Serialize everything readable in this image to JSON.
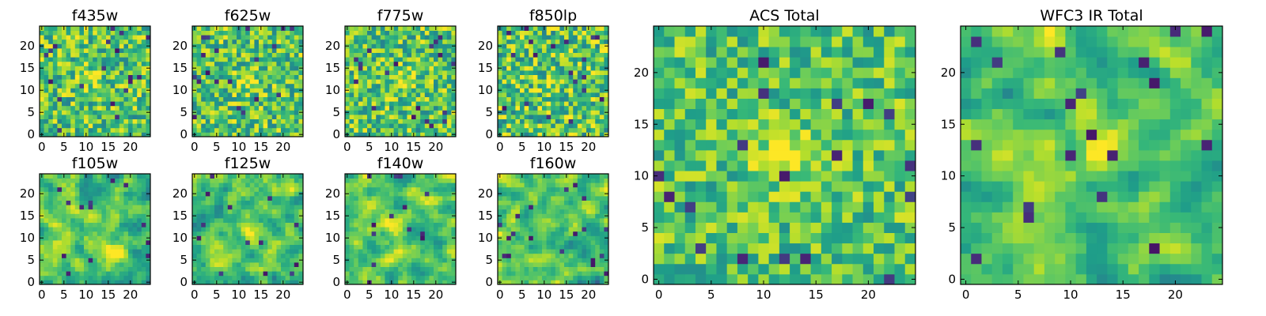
{
  "chart_data": [
    {
      "type": "heatmap",
      "title": "f435w",
      "xticks": [
        0,
        5,
        10,
        15,
        20
      ],
      "yticks": [
        0,
        5,
        10,
        15,
        20
      ],
      "xlim": [
        0,
        25
      ],
      "ylim": [
        0,
        25
      ],
      "size": 25,
      "colormap": "viridis",
      "seed": 11,
      "noise": 0.55,
      "smooth": 0,
      "peak": [
        11,
        13
      ],
      "peak_strength": 0.18,
      "dark_fraction": 0.03
    },
    {
      "type": "heatmap",
      "title": "f625w",
      "xticks": [
        0,
        5,
        10,
        15,
        20
      ],
      "yticks": [
        0,
        5,
        10,
        15,
        20
      ],
      "xlim": [
        0,
        25
      ],
      "ylim": [
        0,
        25
      ],
      "size": 25,
      "colormap": "viridis",
      "seed": 23,
      "noise": 0.55,
      "smooth": 0,
      "peak": [
        12,
        12
      ],
      "peak_strength": 0.25,
      "dark_fraction": 0.03
    },
    {
      "type": "heatmap",
      "title": "f775w",
      "xticks": [
        0,
        5,
        10,
        15,
        20
      ],
      "yticks": [
        0,
        5,
        10,
        15,
        20
      ],
      "xlim": [
        0,
        25
      ],
      "ylim": [
        0,
        25
      ],
      "size": 25,
      "colormap": "viridis",
      "seed": 37,
      "noise": 0.55,
      "smooth": 0,
      "peak": [
        13,
        12
      ],
      "peak_strength": 0.25,
      "dark_fraction": 0.03
    },
    {
      "type": "heatmap",
      "title": "f850lp",
      "xticks": [
        0,
        5,
        10,
        15,
        20
      ],
      "yticks": [
        0,
        5,
        10,
        15,
        20
      ],
      "xlim": [
        0,
        25
      ],
      "ylim": [
        0,
        25
      ],
      "size": 25,
      "colormap": "viridis",
      "seed": 41,
      "noise": 0.6,
      "smooth": 0,
      "peak": [
        12,
        12
      ],
      "peak_strength": 0.1,
      "dark_fraction": 0.03
    },
    {
      "type": "heatmap",
      "title": "f105w",
      "xticks": [
        0,
        5,
        10,
        15,
        20
      ],
      "yticks": [
        0,
        5,
        10,
        15,
        20
      ],
      "xlim": [
        0,
        25
      ],
      "ylim": [
        0,
        25
      ],
      "size": 25,
      "colormap": "viridis",
      "seed": 53,
      "noise": 0.5,
      "smooth": 1,
      "peak": [
        15,
        8
      ],
      "peak_strength": 0.3,
      "dark_fraction": 0.02
    },
    {
      "type": "heatmap",
      "title": "f125w",
      "xticks": [
        0,
        5,
        10,
        15,
        20
      ],
      "yticks": [
        0,
        5,
        10,
        15,
        20
      ],
      "xlim": [
        0,
        25
      ],
      "ylim": [
        0,
        25
      ],
      "size": 25,
      "colormap": "viridis",
      "seed": 67,
      "noise": 0.5,
      "smooth": 1,
      "peak": [
        12,
        12
      ],
      "peak_strength": 0.15,
      "dark_fraction": 0.02
    },
    {
      "type": "heatmap",
      "title": "f140w",
      "xticks": [
        0,
        5,
        10,
        15,
        20
      ],
      "yticks": [
        0,
        5,
        10,
        15,
        20
      ],
      "xlim": [
        0,
        25
      ],
      "ylim": [
        0,
        25
      ],
      "size": 25,
      "colormap": "viridis",
      "seed": 71,
      "noise": 0.5,
      "smooth": 1,
      "peak": [
        10,
        13
      ],
      "peak_strength": 0.15,
      "dark_fraction": 0.02
    },
    {
      "type": "heatmap",
      "title": "f160w",
      "xticks": [
        0,
        5,
        10,
        15,
        20
      ],
      "yticks": [
        0,
        5,
        10,
        15,
        20
      ],
      "xlim": [
        0,
        25
      ],
      "ylim": [
        0,
        25
      ],
      "size": 25,
      "colormap": "viridis",
      "seed": 83,
      "noise": 0.5,
      "smooth": 1,
      "peak": [
        13,
        12
      ],
      "peak_strength": 0.2,
      "dark_fraction": 0.03
    },
    {
      "type": "heatmap",
      "title": "ACS Total",
      "xticks": [
        0,
        5,
        10,
        15,
        20
      ],
      "yticks": [
        0,
        5,
        10,
        15,
        20
      ],
      "xlim": [
        0,
        25
      ],
      "ylim": [
        0,
        25
      ],
      "size": 25,
      "colormap": "viridis",
      "seed": 97,
      "noise": 0.45,
      "smooth": 0,
      "peak": [
        12,
        12
      ],
      "peak_strength": 0.35,
      "dark_fraction": 0.03
    },
    {
      "type": "heatmap",
      "title": "WFC3 IR Total",
      "xticks": [
        0,
        5,
        10,
        15,
        20
      ],
      "yticks": [
        0,
        5,
        10,
        15,
        20
      ],
      "xlim": [
        0,
        25
      ],
      "ylim": [
        0,
        25
      ],
      "size": 25,
      "colormap": "viridis",
      "seed": 101,
      "noise": 0.45,
      "smooth": 1,
      "peak": [
        13,
        13
      ],
      "peak_strength": 0.35,
      "dark_fraction": 0.03
    }
  ]
}
